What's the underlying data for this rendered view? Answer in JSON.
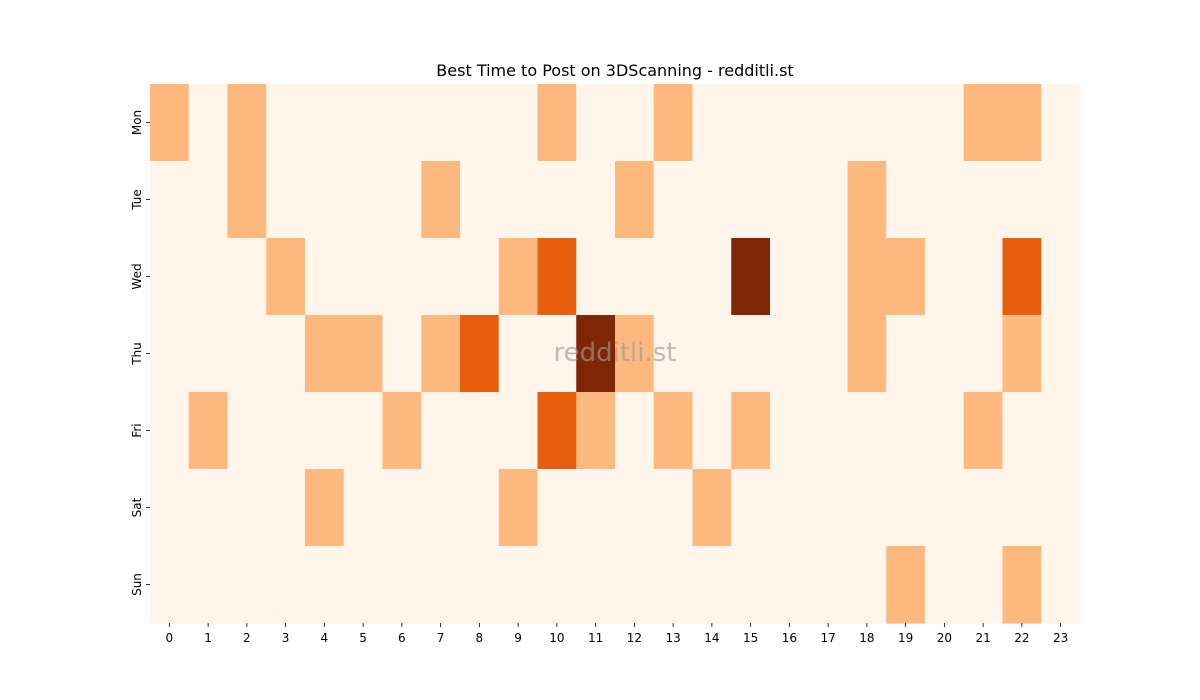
{
  "chart_data": {
    "type": "heatmap",
    "title": "Best Time to Post on 3DScanning - redditli.st",
    "watermark": "redditli.st",
    "xlabel": "",
    "ylabel": "",
    "x_tick_labels": [
      "0",
      "1",
      "2",
      "3",
      "4",
      "5",
      "6",
      "7",
      "8",
      "9",
      "10",
      "11",
      "12",
      "13",
      "14",
      "15",
      "16",
      "17",
      "18",
      "19",
      "20",
      "21",
      "22",
      "23"
    ],
    "y_tick_labels": [
      "Mon",
      "Tue",
      "Wed",
      "Thu",
      "Fri",
      "Sat",
      "Sun"
    ],
    "colorbar": false,
    "colors": {
      "0": "#fff5eb",
      "1": "#fdb97d",
      "2": "#e95e0d",
      "3": "#7f2704"
    },
    "values": [
      [
        1,
        0,
        1,
        0,
        0,
        0,
        0,
        0,
        0,
        0,
        1,
        0,
        0,
        1,
        0,
        0,
        0,
        0,
        0,
        0,
        0,
        1,
        1,
        0
      ],
      [
        0,
        0,
        1,
        0,
        0,
        0,
        0,
        1,
        0,
        0,
        0,
        0,
        1,
        0,
        0,
        0,
        0,
        0,
        1,
        0,
        0,
        0,
        0,
        0
      ],
      [
        0,
        0,
        0,
        1,
        0,
        0,
        0,
        0,
        0,
        1,
        2,
        0,
        0,
        0,
        0,
        3,
        0,
        0,
        1,
        1,
        0,
        0,
        2,
        0
      ],
      [
        0,
        0,
        0,
        0,
        1,
        1,
        0,
        1,
        2,
        0,
        0,
        3,
        1,
        0,
        0,
        0,
        0,
        0,
        1,
        0,
        0,
        0,
        1,
        0
      ],
      [
        0,
        1,
        0,
        0,
        0,
        0,
        1,
        0,
        0,
        0,
        2,
        1,
        0,
        1,
        0,
        1,
        0,
        0,
        0,
        0,
        0,
        1,
        0,
        0
      ],
      [
        0,
        0,
        0,
        0,
        1,
        0,
        0,
        0,
        0,
        1,
        0,
        0,
        0,
        0,
        1,
        0,
        0,
        0,
        0,
        0,
        0,
        0,
        0,
        0
      ],
      [
        0,
        0,
        0,
        0,
        0,
        0,
        0,
        0,
        0,
        0,
        0,
        0,
        0,
        0,
        0,
        0,
        0,
        0,
        0,
        1,
        0,
        0,
        1,
        0
      ]
    ]
  }
}
